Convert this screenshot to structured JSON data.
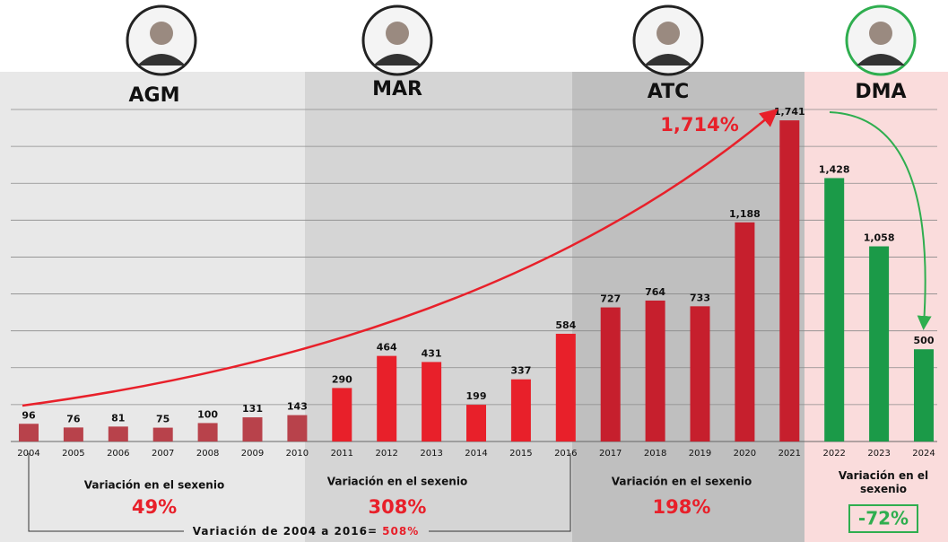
{
  "chart_data": {
    "type": "bar",
    "categories": [
      "2004",
      "2005",
      "2006",
      "2007",
      "2008",
      "2009",
      "2010",
      "2011",
      "2012",
      "2013",
      "2014",
      "2015",
      "2016",
      "2017",
      "2018",
      "2019",
      "2020",
      "2021",
      "2022",
      "2023",
      "2024"
    ],
    "values": [
      96,
      76,
      81,
      75,
      100,
      131,
      143,
      290,
      464,
      431,
      199,
      337,
      584,
      727,
      764,
      733,
      1188,
      1741,
      1428,
      1058,
      500
    ],
    "value_labels": [
      "96",
      "76",
      "81",
      "75",
      "100",
      "131",
      "143",
      "290",
      "464",
      "431",
      "199",
      "337",
      "584",
      "727",
      "764",
      "733",
      "1,188",
      "1,741",
      "1,428",
      "1,058",
      "500"
    ],
    "bar_colors": [
      "#b8424b",
      "#b8424b",
      "#b8424b",
      "#b8424b",
      "#b8424b",
      "#b8424b",
      "#b8424b",
      "#e8202a",
      "#e8202a",
      "#e8202a",
      "#e8202a",
      "#e8202a",
      "#e8202a",
      "#c61f2d",
      "#c61f2d",
      "#c61f2d",
      "#c61f2d",
      "#c61f2d",
      "#1b9a48",
      "#1b9a48",
      "#1b9a48"
    ],
    "ylim": [
      0,
      1800
    ],
    "grid_lines": [
      200,
      400,
      600,
      800,
      1000,
      1200,
      1400,
      1600,
      1800
    ],
    "periods": [
      {
        "name": "AGM",
        "background": "#e8e8e8",
        "variation_title": "Variación en el sexenio",
        "variation": "49%"
      },
      {
        "name": "MAR",
        "background": "#d5d5d5",
        "variation_title": "Variación en el sexenio",
        "variation": "308%"
      },
      {
        "name": "ATC",
        "background": "#bfbfbf",
        "variation_title": "Variación en el sexenio",
        "variation": "198%"
      },
      {
        "name": "DMA",
        "background": "#fadcdc",
        "variation_title": "Variación en el sexenio",
        "variation": "-72%"
      }
    ],
    "growth_annotation": "1,714%",
    "total_label": "Variación de 2004 a 2016= ",
    "total_value": "508%"
  }
}
